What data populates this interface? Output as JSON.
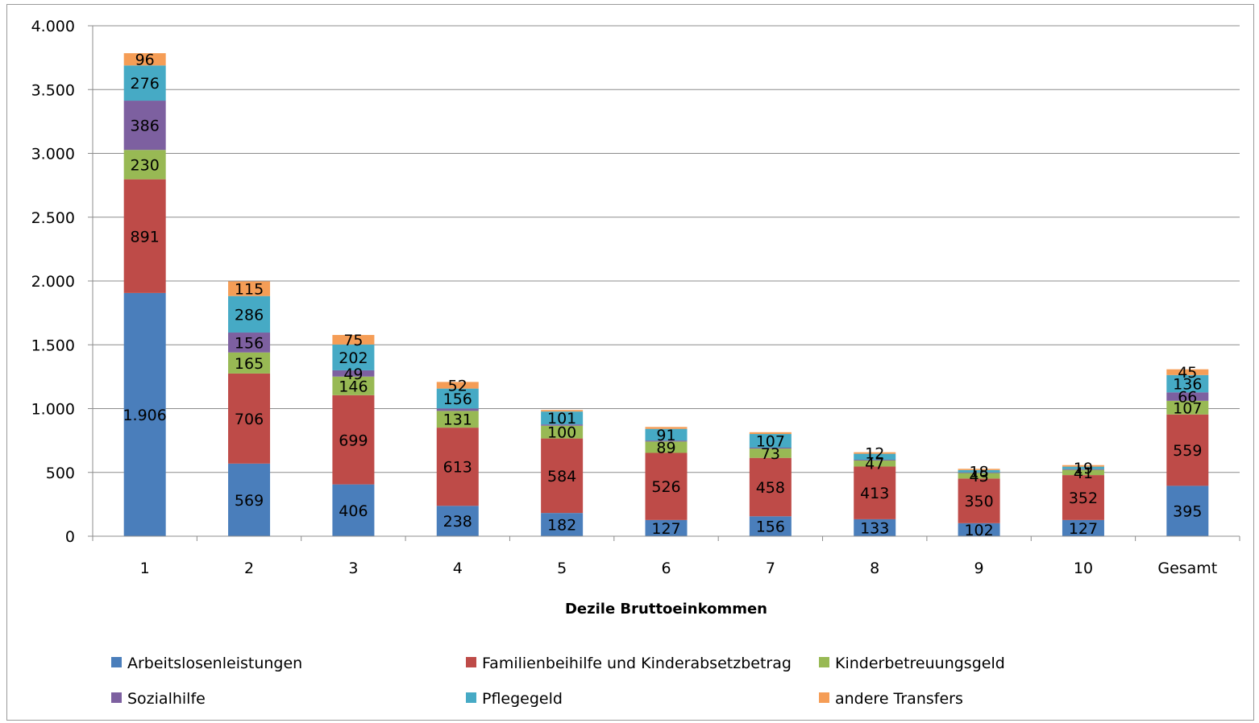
{
  "chart_data": {
    "type": "bar",
    "stacked": true,
    "categories": [
      "1",
      "2",
      "3",
      "4",
      "5",
      "6",
      "7",
      "8",
      "9",
      "10",
      "Gesamt"
    ],
    "xlabel": "Dezile Bruttoeinkommen",
    "ylabel": "",
    "title": "",
    "ylim": [
      0,
      4000
    ],
    "yticks": [
      0,
      500,
      1000,
      1500,
      2000,
      2500,
      3000,
      3500,
      4000
    ],
    "ytick_labels": [
      "0",
      "500",
      "1.000",
      "1.500",
      "2.000",
      "2.500",
      "3.000",
      "3.500",
      "4.000"
    ],
    "grid": true,
    "legend_position": "bottom",
    "series": [
      {
        "name": "Arbeitslosenleistungen",
        "color": "#4a7ebb",
        "values": [
          1906,
          569,
          406,
          238,
          182,
          127,
          156,
          133,
          102,
          127,
          395
        ],
        "labels": [
          "1.906",
          "569",
          "406",
          "238",
          "182",
          "127",
          "156",
          "133",
          "102",
          "127",
          "395"
        ]
      },
      {
        "name": "Familienbeihilfe und Kinderabsetzbetrag",
        "color": "#be4b48",
        "values": [
          891,
          706,
          699,
          613,
          584,
          526,
          458,
          413,
          350,
          352,
          559
        ],
        "labels": [
          "891",
          "706",
          "699",
          "613",
          "584",
          "526",
          "458",
          "413",
          "350",
          "352",
          "559"
        ]
      },
      {
        "name": "Kinderbetreuungsgeld",
        "color": "#98b954",
        "values": [
          230,
          165,
          146,
          131,
          100,
          89,
          73,
          47,
          43,
          41,
          107
        ],
        "labels": [
          "230",
          "165",
          "146",
          "131",
          "100",
          "89",
          "73",
          "47",
          "43",
          "41",
          "107"
        ]
      },
      {
        "name": "Sozialhilfe",
        "color": "#7d60a0",
        "values": [
          386,
          156,
          49,
          19,
          10,
          8,
          7,
          6,
          5,
          6,
          66
        ],
        "labels": [
          "386",
          "156",
          "49",
          "",
          "",
          "",
          "",
          "",
          "",
          "",
          "66"
        ]
      },
      {
        "name": "Pflegegeld",
        "color": "#46aac5",
        "values": [
          276,
          286,
          202,
          156,
          101,
          91,
          107,
          47,
          18,
          19,
          136
        ],
        "labels": [
          "276",
          "286",
          "202",
          "156",
          "101",
          "91",
          "107",
          "",
          "18",
          "19",
          "136"
        ]
      },
      {
        "name": "andere Transfers",
        "color": "#f59d56",
        "values": [
          96,
          115,
          75,
          52,
          12,
          15,
          14,
          12,
          10,
          12,
          45
        ],
        "labels": [
          "96",
          "115",
          "75",
          "52",
          "",
          "",
          "",
          "12",
          "",
          "",
          "45"
        ]
      }
    ]
  }
}
